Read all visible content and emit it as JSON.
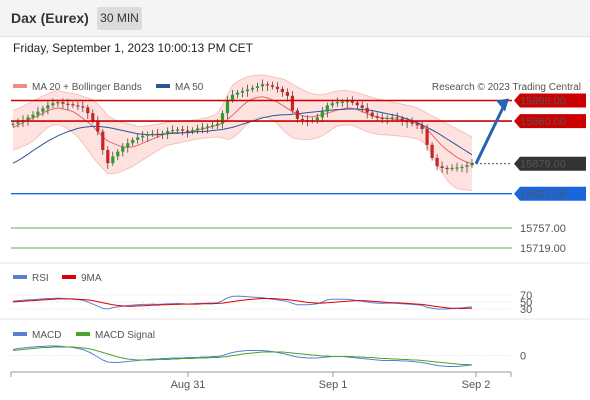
{
  "header": {
    "instrument": "Dax (Eurex)",
    "timeframe": "30 MIN"
  },
  "datetime": "Friday, September 1, 2023 10:00:13 PM CET",
  "legend": {
    "ma_bb": "MA 20 + Bollinger Bands",
    "ma50": "MA 50",
    "credit": "Research © 2023 Trading Central"
  },
  "colors": {
    "bb": "#f28b82",
    "ma50": "#2b5797",
    "resistance": "#cc0000",
    "support": "#1a66dd",
    "green_level": "#2e8b2e",
    "rsi": "#5b7fd6",
    "rsi_ma": "#dd0000",
    "macd": "#5b7fd6",
    "macd_signal": "#4aa32a",
    "up": "#2a9d2a",
    "down": "#cc2222"
  },
  "chart_data": {
    "type": "line",
    "ylim": [
      15700,
      16000
    ],
    "x_ticks": [
      "Aug 31",
      "Sep 1",
      "Sep 2"
    ],
    "price": [
      15955,
      15958,
      15962,
      15967,
      15972,
      15978,
      15984,
      15990,
      15994,
      15996,
      15993,
      15992,
      15990,
      15988,
      15986,
      15975,
      15960,
      15940,
      15905,
      15880,
      15893,
      15902,
      15911,
      15918,
      15924,
      15929,
      15932,
      15935,
      15936,
      15935,
      15937,
      15941,
      15943,
      15944,
      15942,
      15940,
      15943,
      15946,
      15948,
      15950,
      15952,
      15955,
      15975,
      16000,
      16010,
      16014,
      16017,
      16020,
      16023,
      16026,
      16030,
      16028,
      16025,
      16021,
      16015,
      16008,
      15980,
      15964,
      15962,
      15961,
      15962,
      15967,
      15978,
      15990,
      15994,
      15996,
      15997,
      15998,
      15995,
      15990,
      15985,
      15976,
      15969,
      15966,
      15965,
      15966,
      15967,
      15965,
      15960,
      15958,
      15955,
      15952,
      15945,
      15915,
      15890,
      15874,
      15871,
      15870,
      15871,
      15872,
      15873,
      15876,
      15879
    ],
    "ma20": [
      15948,
      15952,
      15957,
      15962,
      15966,
      15970,
      15975,
      15980,
      15983,
      15985,
      15983,
      15981,
      15978,
      15972,
      15965,
      15958,
      15950,
      15940,
      15930,
      15922,
      15918,
      15914,
      15911,
      15910,
      15911,
      15914,
      15918,
      15922,
      15926,
      15930,
      15934,
      15937,
      15938,
      15938,
      15938,
      15939,
      15941,
      15943,
      15945,
      15947,
      15950,
      15952,
      15956,
      15963,
      15971,
      15980,
      15989,
      15997,
      16002,
      16005,
      16006,
      16004,
      16000,
      15996,
      15990,
      15984,
      15978,
      15974,
      15970,
      15968,
      15968,
      15970,
      15972,
      15975,
      15978,
      15981,
      15983,
      15985,
      15984,
      15982,
      15978,
      15974,
      15970,
      15968,
      15966,
      15965,
      15964,
      15963,
      15962,
      15961,
      15959,
      15956,
      15951,
      15944,
      15934,
      15923,
      15913,
      15905,
      15898,
      15891,
      15886,
      15882,
      15879
    ],
    "bb_upper": [
      15980,
      15984,
      15988,
      15993,
      15998,
      16003,
      16008,
      16012,
      16016,
      16018,
      16016,
      16014,
      16012,
      16010,
      16007,
      16004,
      16000,
      15992,
      15982,
      15970,
      15965,
      15960,
      15957,
      15955,
      15953,
      15950,
      15950,
      15951,
      15953,
      15954,
      15956,
      15958,
      15959,
      15960,
      15961,
      15961,
      15962,
      15963,
      15965,
      15967,
      15970,
      15975,
      15990,
      16010,
      16028,
      16035,
      16040,
      16044,
      16046,
      16047,
      16047,
      16046,
      16044,
      16042,
      16040,
      16036,
      16030,
      16025,
      16020,
      16015,
      16012,
      16010,
      16010,
      16012,
      16015,
      16017,
      16018,
      16018,
      16016,
      16014,
      16011,
      16008,
      16005,
      16002,
      16000,
      15998,
      15996,
      15994,
      15992,
      15990,
      15988,
      15985,
      15980,
      15975,
      15970,
      15965,
      15960,
      15955,
      15950,
      15945,
      15940,
      15935,
      15930
    ],
    "bb_lower": [
      15905,
      15908,
      15912,
      15916,
      15922,
      15930,
      15940,
      15948,
      15952,
      15953,
      15950,
      15945,
      15938,
      15930,
      15918,
      15905,
      15892,
      15880,
      15870,
      15860,
      15860,
      15862,
      15866,
      15870,
      15874,
      15880,
      15886,
      15892,
      15898,
      15904,
      15910,
      15914,
      15916,
      15918,
      15920,
      15922,
      15924,
      15926,
      15927,
      15928,
      15929,
      15930,
      15928,
      15925,
      15928,
      15935,
      15945,
      15955,
      15962,
      15966,
      15968,
      15966,
      15962,
      15955,
      15944,
      15935,
      15928,
      15926,
      15925,
      15925,
      15926,
      15928,
      15932,
      15938,
      15945,
      15950,
      15952,
      15953,
      15952,
      15948,
      15944,
      15940,
      15937,
      15935,
      15934,
      15934,
      15933,
      15932,
      15931,
      15930,
      15928,
      15926,
      15922,
      15912,
      15896,
      15878,
      15862,
      15848,
      15838,
      15832,
      15830,
      15829,
      15828
    ],
    "ma50": [
      15880,
      15885,
      15891,
      15897,
      15904,
      15910,
      15916,
      15922,
      15927,
      15932,
      15936,
      15940,
      15943,
      15946,
      15948,
      15949,
      15950,
      15950,
      15949,
      15948,
      15946,
      15944,
      15942,
      15940,
      15938,
      15936,
      15935,
      15934,
      15934,
      15934,
      15935,
      15936,
      15937,
      15937,
      15938,
      15938,
      15939,
      15940,
      15940,
      15941,
      15942,
      15943,
      15944,
      15946,
      15948,
      15951,
      15954,
      15957,
      15960,
      15963,
      15966,
      15968,
      15970,
      15971,
      15972,
      15972,
      15973,
      15974,
      15975,
      15976,
      15977,
      15978,
      15979,
      15980,
      15981,
      15982,
      15982,
      15983,
      15983,
      15983,
      15982,
      15981,
      15980,
      15978,
      15976,
      15974,
      15972,
      15970,
      15967,
      15964,
      15961,
      15957,
      15953,
      15948,
      15943,
      15938,
      15932,
      15926,
      15920,
      15914,
      15908,
      15902,
      15896
    ],
    "levels": [
      {
        "value": 15999,
        "label": "15999.00",
        "kind": "resistance"
      },
      {
        "value": 15960,
        "label": "15960.00",
        "kind": "resistance"
      },
      {
        "value": 15879,
        "label": "15879.00",
        "kind": "last"
      },
      {
        "value": 15822,
        "label": "15822.00",
        "kind": "support"
      },
      {
        "value": 15757,
        "label": "15757.00",
        "kind": "target"
      },
      {
        "value": 15719,
        "label": "15719.00",
        "kind": "target"
      }
    ],
    "rsi": {
      "levels": [
        "70",
        "50",
        "30"
      ],
      "values": [
        52,
        54,
        55,
        56,
        57,
        58,
        59,
        60,
        60,
        61,
        60,
        59,
        58,
        57,
        55,
        50,
        44,
        38,
        32,
        30,
        34,
        36,
        38,
        40,
        41,
        42,
        43,
        43,
        44,
        43,
        44,
        45,
        45,
        46,
        45,
        44,
        45,
        46,
        46,
        47,
        47,
        48,
        54,
        62,
        66,
        67,
        66,
        65,
        64,
        63,
        62,
        60,
        58,
        56,
        54,
        52,
        46,
        42,
        42,
        42,
        43,
        45,
        50,
        56,
        58,
        58,
        58,
        58,
        56,
        54,
        52,
        50,
        48,
        47,
        46,
        47,
        47,
        46,
        45,
        44,
        43,
        42,
        40,
        35,
        32,
        30,
        30,
        30,
        31,
        32,
        33,
        35,
        36
      ],
      "ma": [
        50,
        51,
        52,
        53,
        54,
        55,
        56,
        57,
        58,
        59,
        59,
        59,
        59,
        58,
        57,
        56,
        54,
        51,
        48,
        45,
        42,
        40,
        39,
        38,
        38,
        39,
        39,
        40,
        41,
        41,
        42,
        42,
        43,
        43,
        44,
        44,
        44,
        44,
        45,
        45,
        45,
        46,
        47,
        49,
        51,
        53,
        55,
        57,
        58,
        59,
        60,
        60,
        60,
        59,
        58,
        57,
        55,
        53,
        51,
        49,
        48,
        47,
        47,
        48,
        49,
        50,
        51,
        52,
        53,
        54,
        54,
        53,
        52,
        51,
        50,
        49,
        48,
        48,
        47,
        46,
        45,
        44,
        43,
        41,
        39,
        37,
        35,
        33,
        32,
        32,
        31,
        32,
        32
      ]
    },
    "macd": {
      "zero_label": "0",
      "macd": [
        12,
        14,
        15,
        16,
        17,
        18,
        18,
        19,
        19,
        19,
        18,
        17,
        16,
        14,
        12,
        8,
        3,
        -3,
        -9,
        -13,
        -14,
        -14,
        -13,
        -12,
        -11,
        -10,
        -9,
        -8,
        -7,
        -7,
        -6,
        -6,
        -5,
        -5,
        -5,
        -4,
        -4,
        -4,
        -3,
        -3,
        -2,
        -2,
        0,
        3,
        6,
        8,
        9,
        10,
        10,
        10,
        10,
        9,
        8,
        6,
        4,
        2,
        -1,
        -3,
        -4,
        -5,
        -5,
        -5,
        -4,
        -3,
        -2,
        -2,
        -2,
        -3,
        -4,
        -5,
        -6,
        -7,
        -8,
        -9,
        -10,
        -10,
        -10,
        -10,
        -11,
        -11,
        -12,
        -13,
        -14,
        -16,
        -18,
        -20,
        -21,
        -22,
        -22,
        -22,
        -21,
        -20,
        -19
      ],
      "signal": [
        10,
        11,
        12,
        13,
        14,
        15,
        16,
        16,
        17,
        17,
        17,
        17,
        17,
        16,
        15,
        14,
        12,
        9,
        6,
        3,
        0,
        -3,
        -5,
        -7,
        -8,
        -9,
        -9,
        -9,
        -9,
        -8,
        -8,
        -8,
        -7,
        -7,
        -6,
        -6,
        -6,
        -5,
        -5,
        -5,
        -4,
        -4,
        -3,
        -2,
        0,
        1,
        3,
        4,
        5,
        6,
        7,
        7,
        7,
        7,
        7,
        6,
        5,
        4,
        3,
        2,
        1,
        0,
        -1,
        -1,
        -2,
        -2,
        -2,
        -2,
        -2,
        -3,
        -3,
        -4,
        -4,
        -5,
        -6,
        -6,
        -7,
        -7,
        -8,
        -8,
        -9,
        -9,
        -10,
        -11,
        -12,
        -13,
        -14,
        -15,
        -16,
        -17,
        -18,
        -18,
        -19
      ]
    }
  }
}
